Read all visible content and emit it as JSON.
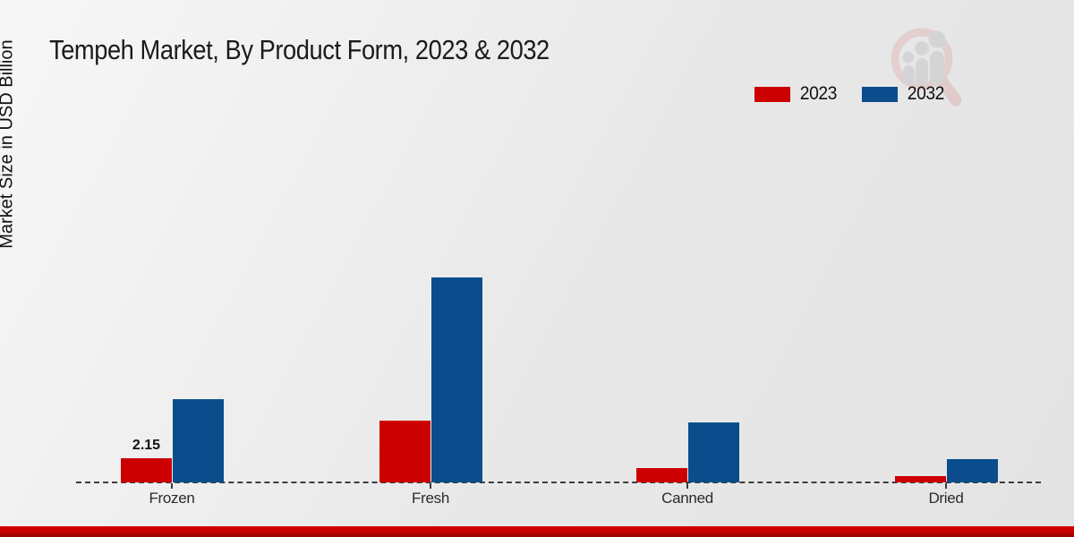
{
  "page": {
    "title": "Tempeh Market, By Product Form, 2023 & 2032",
    "ylabel": "Market Size in USD Billion"
  },
  "legend": [
    {
      "label": "2023",
      "color": "#cc0000"
    },
    {
      "label": "2032",
      "color": "#0b4d8c"
    }
  ],
  "chart_data": {
    "type": "bar",
    "title": "Tempeh Market, By Product Form, 2023 & 2032",
    "xlabel": "",
    "ylabel": "Market Size in USD Billion",
    "categories": [
      "Frozen",
      "Fresh",
      "Canned",
      "Dried"
    ],
    "series": [
      {
        "name": "2023",
        "color": "#cc0000",
        "values": [
          2.15,
          5.5,
          1.25,
          0.55
        ]
      },
      {
        "name": "2032",
        "color": "#0b4d8c",
        "values": [
          7.4,
          18.2,
          5.3,
          2.05
        ]
      }
    ],
    "data_labels": [
      {
        "category": "Frozen",
        "series": "2023",
        "text": "2.15"
      }
    ],
    "ylim": [
      0,
      20
    ],
    "grid": false,
    "y_axis_ticks_visible": false,
    "baseline_style": "dashed",
    "legend_position": "top-right"
  },
  "branding": {
    "logo_icon": "chart-magnifier-logo",
    "bottom_accent_color": "#c40000"
  }
}
